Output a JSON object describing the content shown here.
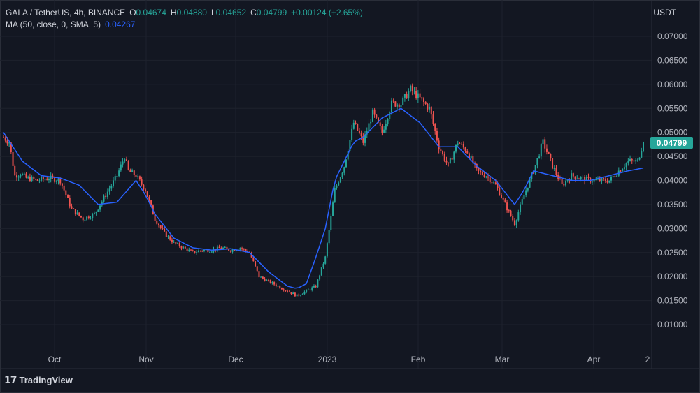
{
  "legend": {
    "symbol": "GALA / TetherUS, 4h, BINANCE",
    "open_label": "O",
    "open": "0.04674",
    "high_label": "H",
    "high": "0.04880",
    "low_label": "L",
    "low": "0.04652",
    "close_label": "C",
    "close": "0.04799",
    "change": "+0.00124 (+2.65%)",
    "ma_label": "MA (50, close, 0, SMA, 5)",
    "ma_value": "0.04267"
  },
  "price_axis_unit": "USDT",
  "last_price_tag": "0.04799",
  "branding": "TradingView",
  "colors": {
    "background": "#131722",
    "grid": "#1e222d",
    "up": "#26a69a",
    "down": "#ef5350",
    "ma": "#2962ff",
    "text": "#b2b5be"
  },
  "chart_data": {
    "type": "candlestick",
    "title": "GALA / TetherUS, 4h, BINANCE",
    "y_unit": "USDT",
    "y_ticks": [
      "0.01000",
      "0.01500",
      "0.02000",
      "0.02500",
      "0.03000",
      "0.03500",
      "0.04000",
      "0.04500",
      "0.05000",
      "0.05500",
      "0.06000",
      "0.06500",
      "0.07000"
    ],
    "x_ticks": [
      "Oct",
      "Nov",
      "Dec",
      "2023",
      "Feb",
      "Mar",
      "Apr",
      "2"
    ],
    "ylim": [
      0.0045,
      0.0755
    ],
    "grid": true,
    "last_price": 0.04799,
    "close_series": {
      "x": [
        0,
        3,
        6,
        9,
        12,
        18,
        24,
        30,
        36,
        42,
        48,
        54,
        60,
        64,
        66,
        70,
        75,
        80,
        85,
        90,
        95,
        100,
        105,
        110,
        115,
        120,
        125,
        130,
        135,
        140,
        145,
        150,
        155,
        160,
        165,
        170,
        175,
        180,
        185,
        190,
        195,
        200,
        205,
        210,
        215,
        220,
        225,
        230,
        235,
        240,
        245,
        250,
        255,
        260,
        265,
        270,
        275,
        280,
        285,
        290,
        295,
        300,
        305,
        310,
        315,
        320,
        325,
        330,
        335,
        338
      ],
      "y": [
        0.049,
        0.048,
        0.041,
        0.0415,
        0.0405,
        0.04,
        0.0405,
        0.04,
        0.034,
        0.032,
        0.033,
        0.037,
        0.041,
        0.045,
        0.042,
        0.041,
        0.038,
        0.032,
        0.029,
        0.027,
        0.026,
        0.025,
        0.0255,
        0.0255,
        0.026,
        0.0255,
        0.026,
        0.025,
        0.02,
        0.019,
        0.018,
        0.017,
        0.016,
        0.017,
        0.018,
        0.024,
        0.038,
        0.043,
        0.052,
        0.048,
        0.054,
        0.05,
        0.056,
        0.056,
        0.059,
        0.057,
        0.055,
        0.047,
        0.043,
        0.048,
        0.046,
        0.042,
        0.041,
        0.039,
        0.035,
        0.031,
        0.037,
        0.042,
        0.048,
        0.043,
        0.039,
        0.041,
        0.0405,
        0.04,
        0.04,
        0.04,
        0.042,
        0.044,
        0.044,
        0.048
      ]
    },
    "ma_series": {
      "name": "MA (50, close, 0, SMA, 5)",
      "x": [
        0,
        10,
        20,
        30,
        40,
        50,
        60,
        70,
        75,
        80,
        90,
        100,
        110,
        120,
        130,
        140,
        150,
        155,
        160,
        165,
        170,
        175,
        180,
        185,
        190,
        200,
        210,
        220,
        230,
        240,
        250,
        260,
        270,
        275,
        280,
        290,
        300,
        310,
        320,
        330,
        338
      ],
      "y": [
        0.05,
        0.044,
        0.041,
        0.0405,
        0.039,
        0.035,
        0.0355,
        0.04,
        0.037,
        0.033,
        0.028,
        0.026,
        0.0255,
        0.0258,
        0.025,
        0.021,
        0.018,
        0.0175,
        0.0185,
        0.024,
        0.03,
        0.04,
        0.044,
        0.048,
        0.049,
        0.053,
        0.055,
        0.052,
        0.047,
        0.047,
        0.043,
        0.04,
        0.035,
        0.038,
        0.042,
        0.041,
        0.04,
        0.04,
        0.041,
        0.042,
        0.0426
      ]
    }
  }
}
